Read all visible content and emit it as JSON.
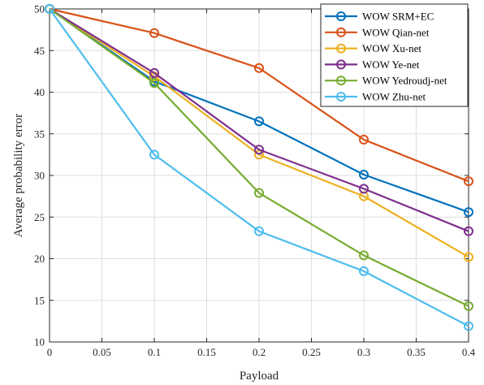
{
  "chart_data": {
    "type": "line",
    "xlabel": "Payload",
    "ylabel": "Average probability error",
    "xlim": [
      0,
      0.4
    ],
    "ylim": [
      10,
      50
    ],
    "xticks": [
      "0",
      "0.05",
      "0.1",
      "0.15",
      "0.2",
      "0.25",
      "0.3",
      "0.35",
      "0.4"
    ],
    "yticks": [
      "10",
      "15",
      "20",
      "25",
      "30",
      "35",
      "40",
      "45",
      "50"
    ],
    "grid": true,
    "legend_position": "top-right",
    "x": [
      0,
      0.1,
      0.2,
      0.3,
      0.4
    ],
    "series": [
      {
        "name": "WOW SRM+EC",
        "color": "#0072BD",
        "values": [
          50,
          41.3,
          36.5,
          30.1,
          25.6
        ]
      },
      {
        "name": "WOW Qian-net",
        "color": "#D95319",
        "values": [
          50,
          47.1,
          42.9,
          34.3,
          29.3
        ]
      },
      {
        "name": "WOW Xu-net",
        "color": "#EDB120",
        "values": [
          50,
          41.9,
          32.5,
          27.5,
          20.2
        ]
      },
      {
        "name": "WOW Ye-net",
        "color": "#7E2F8E",
        "values": [
          50,
          42.3,
          33.1,
          28.4,
          23.3
        ]
      },
      {
        "name": "WOW Yedroudj-net",
        "color": "#77AC30",
        "values": [
          50,
          41.1,
          27.9,
          20.4,
          14.3
        ]
      },
      {
        "name": "WOW Zhu-net",
        "color": "#4DBEEE",
        "values": [
          50,
          32.5,
          23.3,
          18.5,
          11.9
        ]
      }
    ]
  }
}
